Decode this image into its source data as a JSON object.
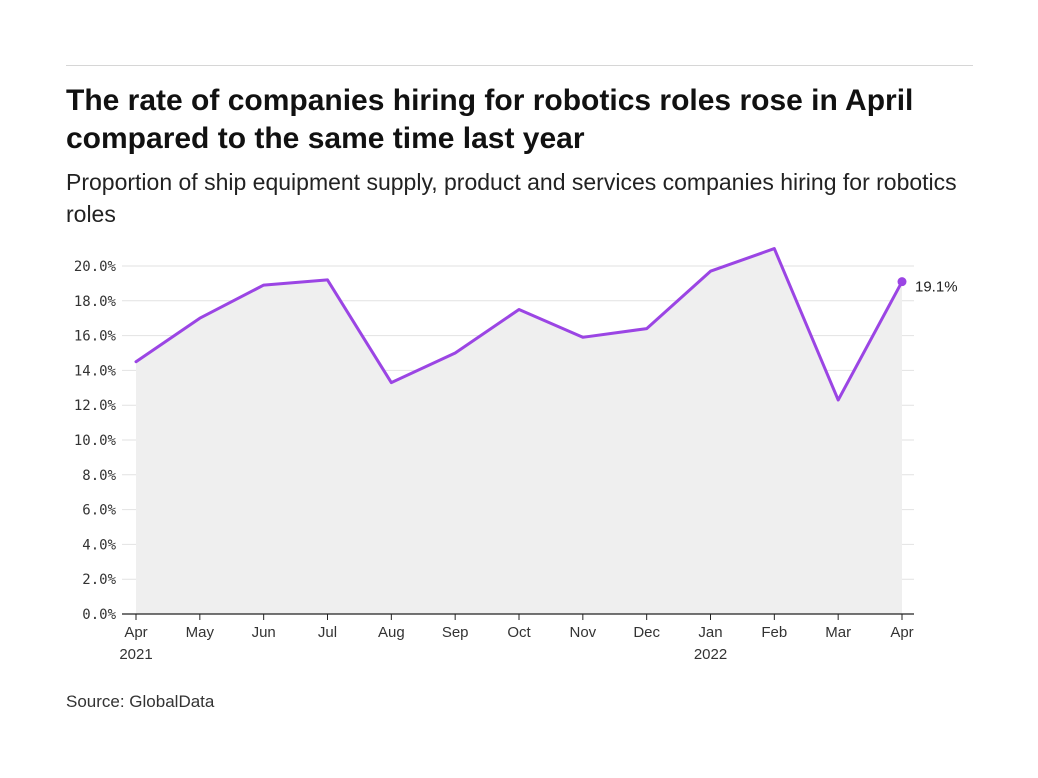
{
  "header": {
    "title": "The rate of companies hiring for robotics roles rose in April compared to the same time last year",
    "subtitle": "Proportion of ship equipment supply, product and services companies hiring for robotics roles"
  },
  "footer": {
    "source": "Source: GlobalData"
  },
  "chart_data": {
    "type": "area",
    "title": "The rate of companies hiring for robotics roles rose in April compared to the same time last year",
    "subtitle": "Proportion of ship equipment supply, product and services companies hiring for robotics roles",
    "categories": [
      "Apr 2021",
      "May",
      "Jun",
      "Jul",
      "Aug",
      "Sep",
      "Oct",
      "Nov",
      "Dec",
      "Jan 2022",
      "Feb",
      "Mar",
      "Apr"
    ],
    "x_tick_labels": [
      [
        "Apr",
        "2021"
      ],
      [
        "May"
      ],
      [
        "Jun"
      ],
      [
        "Jul"
      ],
      [
        "Aug"
      ],
      [
        "Sep"
      ],
      [
        "Oct"
      ],
      [
        "Nov"
      ],
      [
        "Dec"
      ],
      [
        "Jan",
        "2022"
      ],
      [
        "Feb"
      ],
      [
        "Mar"
      ],
      [
        "Apr"
      ]
    ],
    "series": [
      {
        "values": [
          14.5,
          17.0,
          18.9,
          19.2,
          13.3,
          15.0,
          17.5,
          15.9,
          16.4,
          19.7,
          21.0,
          12.3,
          19.1
        ]
      }
    ],
    "ylim": [
      0,
      20
    ],
    "y_ticks": [
      0,
      2,
      4,
      6,
      8,
      10,
      12,
      14,
      16,
      18,
      20
    ],
    "y_tick_labels": [
      "0.0%",
      "2.0%",
      "4.0%",
      "6.0%",
      "8.0%",
      "10.0%",
      "12.0%",
      "14.0%",
      "16.0%",
      "18.0%",
      "20.0%"
    ],
    "end_label": "19.1%",
    "xlabel": "",
    "ylabel": "",
    "grid": true,
    "colors": {
      "line": "#9b45e4",
      "fill": "#efefef",
      "grid": "#e2e2e2",
      "axis": "#222222"
    }
  }
}
